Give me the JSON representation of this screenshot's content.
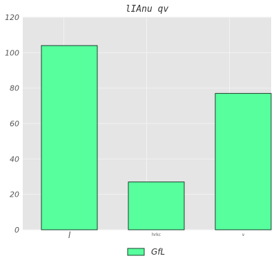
{
  "chart_data": {
    "type": "bar",
    "title": "lIAnu qv",
    "xlabel": "",
    "ylabel": "",
    "categories": [
      "l",
      "hrkc",
      "v"
    ],
    "series": [
      {
        "name": "GfL",
        "values": [
          104,
          27,
          77
        ]
      }
    ],
    "ylim": [
      0,
      120
    ],
    "yticks": [
      0,
      20,
      40,
      60,
      80,
      100,
      120
    ],
    "ytick_labels": [
      "0",
      "20",
      "40",
      "60",
      "80",
      "100",
      "120"
    ],
    "grid": true,
    "legend_position": "bottom-center",
    "colors": {
      "bar_fill": "#57ff9d",
      "bar_edge": "#1a3d2a",
      "plot_background": "#e5e5e5",
      "grid": "#f2f2f2"
    }
  }
}
